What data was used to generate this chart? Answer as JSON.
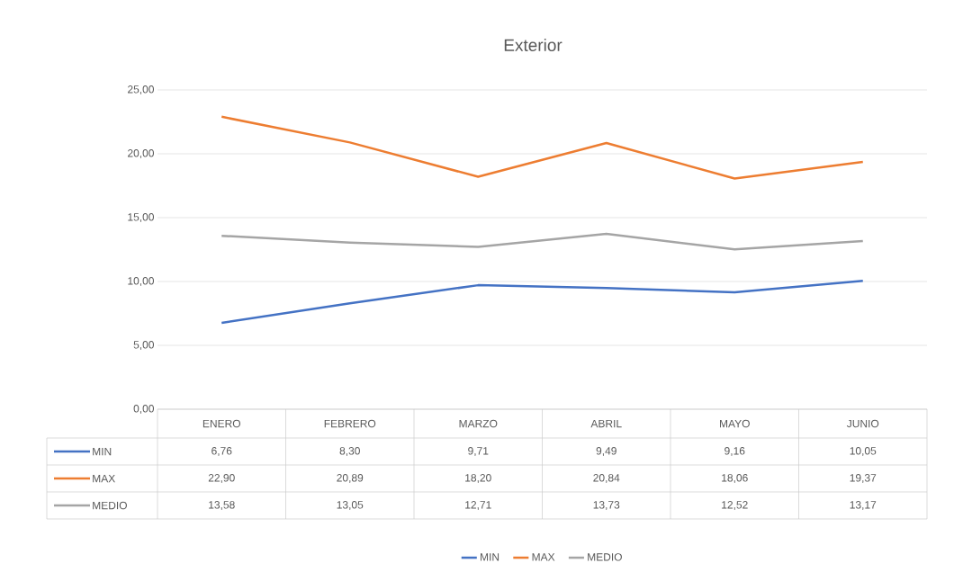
{
  "chart_data": {
    "type": "line",
    "title": "Exterior",
    "categories": [
      "ENERO",
      "FEBRERO",
      "MARZO",
      "ABRIL",
      "MAYO",
      "JUNIO"
    ],
    "series": [
      {
        "name": "MIN",
        "color": "#4472c4",
        "values": [
          6.76,
          8.3,
          9.71,
          9.49,
          9.16,
          10.05
        ],
        "value_labels": [
          "6,76",
          "8,30",
          "9,71",
          "9,49",
          "9,16",
          "10,05"
        ]
      },
      {
        "name": "MAX",
        "color": "#ed7d31",
        "values": [
          22.9,
          20.89,
          18.2,
          20.84,
          18.06,
          19.37
        ],
        "value_labels": [
          "22,90",
          "20,89",
          "18,20",
          "20,84",
          "18,06",
          "19,37"
        ]
      },
      {
        "name": "MEDIO",
        "color": "#a5a5a5",
        "values": [
          13.58,
          13.05,
          12.71,
          13.73,
          12.52,
          13.17
        ],
        "value_labels": [
          "13,58",
          "13,05",
          "12,71",
          "13,73",
          "12,52",
          "13,17"
        ]
      }
    ],
    "ylim": [
      0,
      25
    ],
    "yticks": [
      {
        "value": 0,
        "label": "0,00"
      },
      {
        "value": 5,
        "label": "5,00"
      },
      {
        "value": 10,
        "label": "10,00"
      },
      {
        "value": 15,
        "label": "15,00"
      },
      {
        "value": 20,
        "label": "20,00"
      },
      {
        "value": 25,
        "label": "25,00"
      }
    ],
    "grid": "y",
    "legend": "bottom"
  }
}
